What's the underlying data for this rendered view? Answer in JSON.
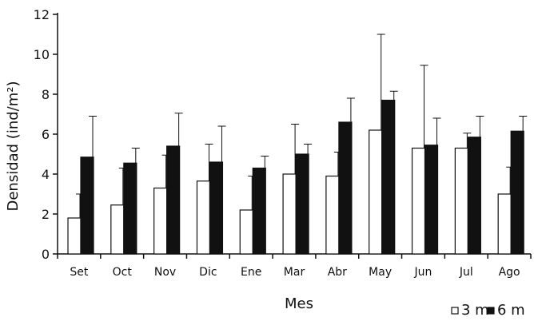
{
  "chart_data": {
    "type": "bar",
    "title": "",
    "xlabel": "Mes",
    "ylabel": "Densidad (ind/m²)",
    "ylim": [
      0,
      12
    ],
    "yticks": [
      0,
      2,
      4,
      6,
      8,
      10,
      12
    ],
    "grid": false,
    "legend_position": "bottom-right",
    "categories": [
      "Set",
      "Oct",
      "Nov",
      "Dic",
      "Ene",
      "Mar",
      "Abr",
      "May",
      "Jun",
      "Jul",
      "Ago"
    ],
    "series": [
      {
        "name": "3 m",
        "color": "#ffffff",
        "values": [
          1.8,
          2.45,
          3.3,
          3.65,
          2.2,
          4.0,
          3.9,
          6.2,
          5.3,
          5.3,
          3.0
        ],
        "error": [
          1.2,
          1.85,
          1.65,
          1.85,
          1.7,
          2.5,
          1.2,
          4.8,
          4.15,
          0.75,
          1.35
        ]
      },
      {
        "name": "6 m",
        "color": "#111111",
        "values": [
          4.85,
          4.55,
          5.4,
          4.6,
          4.3,
          5.0,
          6.6,
          7.7,
          5.45,
          5.85,
          6.15
        ],
        "error": [
          2.05,
          0.75,
          1.65,
          1.8,
          0.6,
          0.5,
          1.2,
          0.45,
          1.35,
          1.05,
          0.75
        ]
      }
    ]
  }
}
